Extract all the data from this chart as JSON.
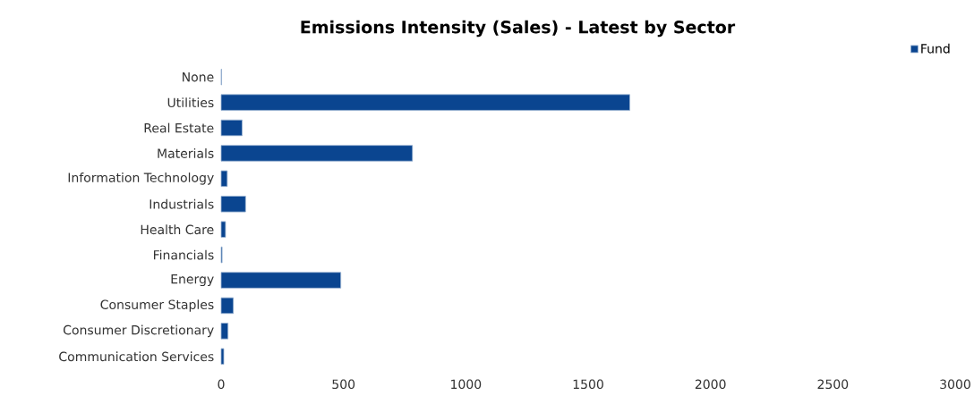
{
  "chart_data": {
    "type": "bar",
    "orientation": "horizontal",
    "title": "Emissions Intensity (Sales) - Latest by Sector",
    "categories": [
      "None",
      "Utilities",
      "Real Estate",
      "Materials",
      "Information Technology",
      "Industrials",
      "Health Care",
      "Financials",
      "Energy",
      "Consumer Staples",
      "Consumer Discretionary",
      "Communication Services"
    ],
    "series": [
      {
        "name": "Fund",
        "color": "#0a4590",
        "values": [
          2,
          1670,
          86,
          782,
          25,
          100,
          18,
          4,
          489,
          50,
          28,
          11
        ]
      }
    ],
    "xlim": [
      0,
      3000
    ],
    "xticks": [
      0,
      500,
      1000,
      1500,
      2000,
      2500,
      3000
    ],
    "grid": false,
    "legend": "top right"
  }
}
